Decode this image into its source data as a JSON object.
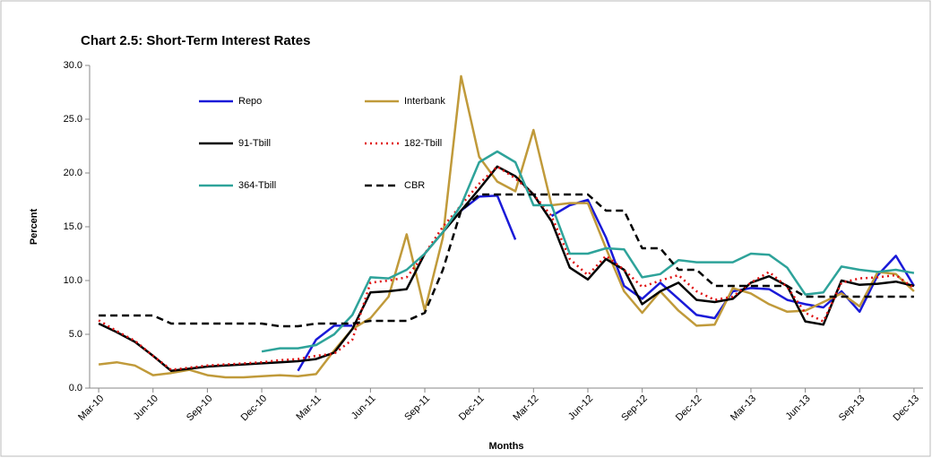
{
  "chart_data": {
    "type": "line",
    "title": "Chart 2.5: Short-Term Interest Rates",
    "y_label": "Percent",
    "x_label": "Months",
    "categories": [
      "Mar-10",
      null,
      null,
      "Jun-10",
      null,
      null,
      "Sep-10",
      null,
      null,
      "Dec-10",
      null,
      null,
      "Mar-11",
      null,
      null,
      "Jun-11",
      null,
      null,
      "Sep-11",
      null,
      null,
      "Dec-11",
      null,
      null,
      "Mar-12",
      null,
      null,
      "Jun-12",
      null,
      null,
      "Sep-12",
      null,
      null,
      "Dec-12",
      null,
      null,
      "Mar-13",
      null,
      null,
      "Jun-13",
      null,
      null,
      "Sep-13",
      null,
      null,
      "Dec-13"
    ],
    "ylim": [
      0,
      30
    ],
    "yticks": [
      {
        "value": 0,
        "label": "0.0"
      },
      {
        "value": 5,
        "label": "5.0"
      },
      {
        "value": 10,
        "label": "10.0"
      },
      {
        "value": 15,
        "label": "15.0"
      },
      {
        "value": 20,
        "label": "20.0"
      },
      {
        "value": 25,
        "label": "25.0"
      },
      {
        "value": 30,
        "label": "30.0"
      }
    ],
    "grid": false,
    "series": [
      {
        "name": "Repo",
        "color": "#1a1ad8",
        "line_style": "solid",
        "values": [
          null,
          null,
          null,
          null,
          null,
          null,
          null,
          null,
          null,
          null,
          null,
          1.6,
          4.5,
          5.8,
          5.8,
          null,
          null,
          null,
          null,
          null,
          16.5,
          17.8,
          17.9,
          13.8,
          null,
          16,
          17,
          17.5,
          14,
          9.5,
          8.3,
          9.8,
          8.3,
          6.8,
          6.5,
          9,
          9.3,
          9.2,
          8.2,
          7.8,
          7.5,
          9,
          7.1,
          10.5,
          12.3,
          9.5
        ]
      },
      {
        "name": "Interbank",
        "color": "#c09a3a",
        "line_style": "solid",
        "values": [
          2.2,
          2.4,
          2.1,
          1.2,
          1.4,
          1.7,
          1.2,
          1.0,
          1.0,
          1.1,
          1.2,
          1.1,
          1.3,
          3.5,
          5.5,
          6.5,
          8.5,
          14.3,
          7.2,
          14,
          29,
          21.5,
          19.2,
          18.3,
          24,
          17,
          17.2,
          17.2,
          13,
          9,
          7,
          9,
          7.2,
          5.8,
          5.9,
          9.3,
          8.8,
          7.8,
          7.1,
          7.2,
          8,
          8.8,
          7.6,
          10.8,
          10.6,
          9
        ]
      },
      {
        "name": "91-Tbill",
        "color": "#000000",
        "line_style": "solid",
        "values": [
          6,
          5.2,
          4.3,
          3,
          1.6,
          1.8,
          2,
          2.1,
          2.2,
          2.3,
          2.4,
          2.5,
          2.7,
          3.3,
          5.5,
          8.9,
          9,
          9.2,
          12.5,
          14.5,
          16.5,
          18.5,
          20.6,
          19.7,
          18,
          15.5,
          11.2,
          10.1,
          12,
          11,
          7.8,
          9,
          9.8,
          8.2,
          8,
          8.3,
          9.8,
          10.4,
          9.5,
          6.2,
          5.9,
          10,
          9.6,
          9.7,
          9.9,
          9.5
        ]
      },
      {
        "name": "182-Tbill",
        "color": "#e01010",
        "line_style": "dotted",
        "values": [
          6.3,
          5.3,
          4.4,
          3,
          1.7,
          1.9,
          2.1,
          2.2,
          2.3,
          2.4,
          2.6,
          2.7,
          3,
          3.2,
          4.5,
          9.8,
          10,
          10.3,
          12.5,
          15,
          17,
          19,
          20.6,
          19.5,
          18,
          16,
          12,
          10.5,
          12.3,
          11,
          9.4,
          10,
          10.5,
          9,
          8.2,
          8.5,
          9.8,
          10.8,
          9.4,
          7,
          6.2,
          9.8,
          10.2,
          10.3,
          10.5,
          9.3
        ]
      },
      {
        "name": "364-Tbill",
        "color": "#2ea39a",
        "line_style": "solid",
        "values": [
          null,
          null,
          null,
          null,
          null,
          null,
          null,
          null,
          null,
          3.4,
          3.7,
          3.7,
          4,
          5,
          6.8,
          10.3,
          10.2,
          11,
          12.5,
          14.5,
          17,
          21,
          22,
          21,
          17,
          17,
          12.5,
          12.5,
          13,
          12.9,
          10.3,
          10.6,
          11.9,
          11.7,
          11.7,
          11.7,
          12.5,
          12.4,
          11.2,
          8.7,
          8.9,
          11.3,
          11,
          10.8,
          11,
          10.7
        ]
      },
      {
        "name": "CBR",
        "color": "#000000",
        "line_style": "dashed",
        "values": [
          6.75,
          6.75,
          6.75,
          6.75,
          6,
          6,
          6,
          6,
          6,
          6,
          5.75,
          5.75,
          6,
          6,
          6,
          6.25,
          6.25,
          6.25,
          7,
          11,
          16.5,
          18,
          18,
          18,
          18,
          18,
          18,
          18,
          16.5,
          16.5,
          13,
          13,
          11,
          11,
          9.5,
          9.5,
          9.5,
          9.5,
          9.5,
          8.5,
          8.5,
          8.5,
          8.5,
          8.5,
          8.5,
          8.5
        ]
      }
    ]
  }
}
